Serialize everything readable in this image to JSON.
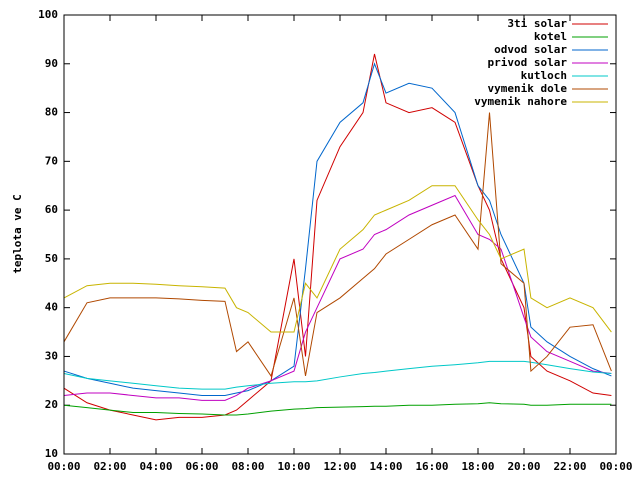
{
  "chart_data": {
    "type": "line",
    "y_label": "teplota ve C",
    "x": [
      0,
      1,
      2,
      3,
      4,
      5,
      6,
      7,
      7.5,
      8,
      9,
      10,
      10.5,
      11,
      12,
      13,
      13.5,
      14,
      15,
      16,
      17,
      18,
      18.5,
      19,
      20,
      20.3,
      21,
      22,
      23,
      23.8
    ],
    "xlim": [
      0,
      24
    ],
    "xticks": [
      {
        "value": 0,
        "label": "00:00"
      },
      {
        "value": 2,
        "label": "02:00"
      },
      {
        "value": 4,
        "label": "04:00"
      },
      {
        "value": 6,
        "label": "06:00"
      },
      {
        "value": 8,
        "label": "08:00"
      },
      {
        "value": 10,
        "label": "10:00"
      },
      {
        "value": 12,
        "label": "12:00"
      },
      {
        "value": 14,
        "label": "14:00"
      },
      {
        "value": 16,
        "label": "16:00"
      },
      {
        "value": 18,
        "label": "18:00"
      },
      {
        "value": 20,
        "label": "20:00"
      },
      {
        "value": 22,
        "label": "22:00"
      },
      {
        "value": 24,
        "label": "00:00"
      }
    ],
    "ylim": [
      10,
      100
    ],
    "yticks": [
      10,
      20,
      30,
      40,
      50,
      60,
      70,
      80,
      90,
      100
    ],
    "legend": "top-right",
    "series": [
      {
        "name": "3ti solar",
        "color": "#d00000",
        "values": [
          23.5,
          20.5,
          19,
          18,
          17,
          17.5,
          17.5,
          18,
          19,
          21,
          25,
          50,
          30,
          62,
          73,
          80,
          92,
          82,
          80,
          81,
          78,
          65,
          60,
          50,
          40,
          30,
          27,
          25,
          22.5,
          22
        ]
      },
      {
        "name": "kotel",
        "color": "#00a000",
        "values": [
          20,
          19.5,
          19,
          18.5,
          18.5,
          18.3,
          18.2,
          18,
          18,
          18.2,
          18.8,
          19.2,
          19.3,
          19.5,
          19.6,
          19.7,
          19.8,
          19.8,
          20,
          20,
          20.2,
          20.3,
          20.5,
          20.3,
          20.2,
          20,
          20,
          20.2,
          20.2,
          20.2
        ]
      },
      {
        "name": "odvod solar",
        "color": "#0066cc",
        "values": [
          27,
          25.5,
          24.5,
          23.5,
          23,
          22.5,
          22,
          22,
          22.5,
          23,
          25,
          28,
          48,
          70,
          78,
          82,
          90,
          84,
          86,
          85,
          80,
          65,
          62,
          55,
          45,
          36,
          33,
          30,
          27.5,
          26
        ]
      },
      {
        "name": "privod solar",
        "color": "#c000c0",
        "values": [
          22,
          22.5,
          22.5,
          22,
          21.5,
          21.5,
          21,
          21,
          22,
          23.5,
          25,
          27,
          35,
          40,
          50,
          52,
          55,
          56,
          59,
          61,
          63,
          55,
          54,
          52,
          38,
          34,
          31,
          29,
          27,
          26.5
        ]
      },
      {
        "name": "kutloch",
        "color": "#00c8c8",
        "values": [
          26.5,
          25.5,
          25,
          24.5,
          24,
          23.5,
          23.3,
          23.3,
          23.7,
          24,
          24.5,
          24.8,
          24.8,
          25,
          25.8,
          26.5,
          26.7,
          27,
          27.5,
          28,
          28.3,
          28.7,
          29,
          29,
          29,
          28.8,
          28.3,
          27.5,
          26.8,
          26.5
        ]
      },
      {
        "name": "vymenik dole",
        "color": "#b04800",
        "values": [
          33,
          41,
          42,
          42,
          42,
          41.8,
          41.5,
          41.3,
          31,
          33,
          26,
          42,
          26,
          39,
          42,
          46,
          48,
          51,
          54,
          57,
          59,
          52,
          80,
          49,
          45,
          27,
          30,
          36,
          36.5,
          27
        ]
      },
      {
        "name": "vymenik nahore",
        "color": "#c8b400",
        "values": [
          42,
          44.5,
          45,
          45,
          44.8,
          44.5,
          44.3,
          44,
          40,
          39,
          35,
          35,
          45,
          42,
          52,
          56,
          59,
          60,
          62,
          65,
          65,
          58,
          55,
          50,
          52,
          42,
          40,
          42,
          40,
          35
        ]
      }
    ]
  }
}
